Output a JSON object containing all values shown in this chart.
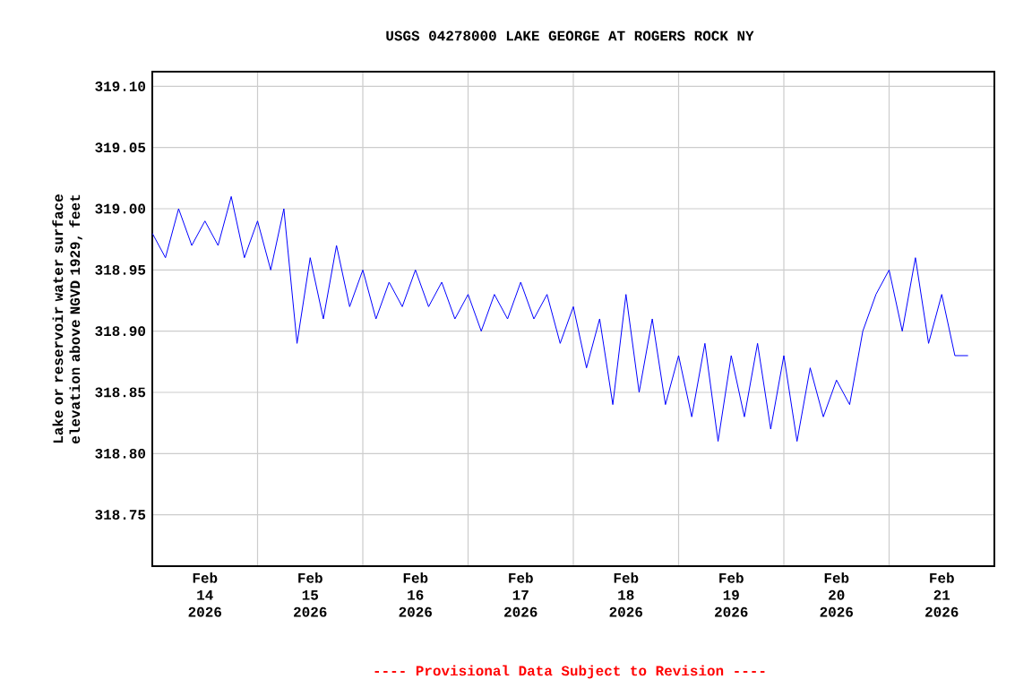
{
  "chart_data": {
    "type": "line",
    "title": "USGS 04278000 LAKE GEORGE AT ROGERS ROCK NY",
    "ylabel": "Lake or reservoir water surface elevation above NGVD 1929, feet",
    "annotations": [
      "---- Provisional Data Subject to Revision ----"
    ],
    "x": [
      "2026-02-14T00:00",
      "2026-02-14T03:00",
      "2026-02-14T06:00",
      "2026-02-14T09:00",
      "2026-02-14T12:00",
      "2026-02-14T15:00",
      "2026-02-14T18:00",
      "2026-02-14T21:00",
      "2026-02-15T00:00",
      "2026-02-15T03:00",
      "2026-02-15T06:00",
      "2026-02-15T09:00",
      "2026-02-15T12:00",
      "2026-02-15T15:00",
      "2026-02-15T18:00",
      "2026-02-15T21:00",
      "2026-02-16T00:00",
      "2026-02-16T03:00",
      "2026-02-16T06:00",
      "2026-02-16T09:00",
      "2026-02-16T12:00",
      "2026-02-16T15:00",
      "2026-02-16T18:00",
      "2026-02-16T21:00",
      "2026-02-17T00:00",
      "2026-02-17T03:00",
      "2026-02-17T06:00",
      "2026-02-17T09:00",
      "2026-02-17T12:00",
      "2026-02-17T15:00",
      "2026-02-17T18:00",
      "2026-02-17T21:00",
      "2026-02-18T00:00",
      "2026-02-18T03:00",
      "2026-02-18T06:00",
      "2026-02-18T09:00",
      "2026-02-18T12:00",
      "2026-02-18T15:00",
      "2026-02-18T18:00",
      "2026-02-18T21:00",
      "2026-02-19T00:00",
      "2026-02-19T03:00",
      "2026-02-19T06:00",
      "2026-02-19T09:00",
      "2026-02-19T12:00",
      "2026-02-19T15:00",
      "2026-02-19T18:00",
      "2026-02-19T21:00",
      "2026-02-20T00:00",
      "2026-02-20T03:00",
      "2026-02-20T06:00",
      "2026-02-20T09:00",
      "2026-02-20T12:00",
      "2026-02-20T15:00",
      "2026-02-20T18:00",
      "2026-02-20T21:00",
      "2026-02-21T00:00",
      "2026-02-21T03:00",
      "2026-02-21T06:00",
      "2026-02-21T09:00",
      "2026-02-21T12:00",
      "2026-02-21T15:00",
      "2026-02-21T18:00"
    ],
    "series": [
      {
        "color": "#0000ff",
        "values": [
          318.98,
          318.96,
          319.0,
          318.97,
          318.99,
          318.97,
          319.01,
          318.96,
          318.99,
          318.95,
          319.0,
          318.89,
          318.96,
          318.91,
          318.97,
          318.92,
          318.95,
          318.91,
          318.94,
          318.92,
          318.95,
          318.92,
          318.94,
          318.91,
          318.93,
          318.9,
          318.93,
          318.91,
          318.94,
          318.91,
          318.93,
          318.89,
          318.92,
          318.87,
          318.91,
          318.84,
          318.93,
          318.85,
          318.91,
          318.84,
          318.88,
          318.83,
          318.89,
          318.81,
          318.88,
          318.83,
          318.89,
          318.82,
          318.88,
          318.81,
          318.87,
          318.83,
          318.86,
          318.84,
          318.9,
          318.93,
          318.95,
          318.9,
          318.96,
          318.89,
          318.93,
          318.88,
          318.88
        ]
      }
    ],
    "xlim": [
      "2026-02-14T00:00",
      "2026-02-22T00:00"
    ],
    "xticks": [
      {
        "value": "2026-02-15",
        "label": null
      },
      {
        "value": "2026-02-16",
        "label": null
      },
      {
        "value": "2026-02-17",
        "label": null
      },
      {
        "value": "2026-02-18",
        "label": null
      },
      {
        "value": "2026-02-19",
        "label": null
      },
      {
        "value": "2026-02-20",
        "label": null
      },
      {
        "value": "2026-02-21",
        "label": null
      },
      {
        "value": "2026-02-14T12:00",
        "label": "Feb 14 2026"
      },
      {
        "value": "2026-02-15T12:00",
        "label": "Feb 15 2026"
      },
      {
        "value": "2026-02-16T12:00",
        "label": "Feb 16 2026"
      },
      {
        "value": "2026-02-17T12:00",
        "label": "Feb 17 2026"
      },
      {
        "value": "2026-02-18T12:00",
        "label": "Feb 18 2026"
      },
      {
        "value": "2026-02-19T12:00",
        "label": "Feb 19 2026"
      },
      {
        "value": "2026-02-20T12:00",
        "label": "Feb 20 2026"
      },
      {
        "value": "2026-02-21T12:00",
        "label": "Feb 21 2026"
      }
    ],
    "ylim": [
      318.708,
      319.112
    ],
    "yticks": [
      {
        "value": 318.75,
        "label": "318.75"
      },
      {
        "value": 318.8,
        "label": "318.80"
      },
      {
        "value": 318.85,
        "label": "318.85"
      },
      {
        "value": 318.9,
        "label": "318.90"
      },
      {
        "value": 318.95,
        "label": "318.95"
      },
      {
        "value": 319.0,
        "label": "319.00"
      },
      {
        "value": 319.05,
        "label": "319.05"
      },
      {
        "value": 319.1,
        "label": "319.10"
      }
    ],
    "grid": true,
    "marker": "none",
    "line_style": "solid"
  }
}
